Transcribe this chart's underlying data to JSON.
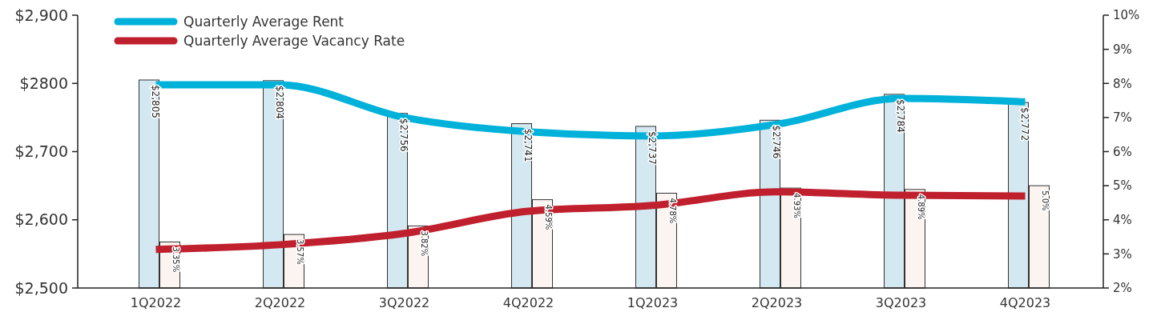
{
  "chart_data": {
    "type": "bar",
    "categories": [
      "1Q2022",
      "2Q2022",
      "3Q2022",
      "4Q2022",
      "1Q2023",
      "2Q2023",
      "3Q2023",
      "4Q2023"
    ],
    "series": [
      {
        "axis": "y",
        "color": "#d3e8f0",
        "values": [
          2805,
          2804,
          2756,
          2741,
          2737,
          2746,
          2784,
          2772
        ],
        "value_labels": [
          "$2,805",
          "$2,804",
          "$2,756",
          "$2,741",
          "$2,737",
          "$2,746",
          "$2,784",
          "$2,772"
        ]
      },
      {
        "axis": "y2",
        "color": "#fcf4f1",
        "values": [
          3.35,
          3.57,
          3.82,
          4.59,
          4.78,
          4.93,
          4.89,
          5.0
        ],
        "value_labels": [
          "3.35%",
          "3.57%",
          "3.82%",
          "4.59%",
          "4.78%",
          "4.93%",
          "4.89%",
          "5.0%"
        ]
      },
      {
        "type": "line",
        "axis": "y",
        "name": "Quarterly Average Rent",
        "color": "#00b2d9",
        "values": [
          2798,
          2798,
          2750,
          2729,
          2723,
          2740,
          2778,
          2773
        ]
      },
      {
        "type": "line",
        "axis": "y2",
        "name": "Quarterly Average Vacancy Rate",
        "color": "#c0202e",
        "values": [
          3.13,
          3.27,
          3.6,
          4.25,
          4.42,
          4.82,
          4.72,
          4.7
        ]
      }
    ],
    "ylim": [
      2500,
      2900
    ],
    "yticks": [
      {
        "value": 2500,
        "label": "$2,500"
      },
      {
        "value": 2600,
        "label": "$2,600"
      },
      {
        "value": 2700,
        "label": "$2,700"
      },
      {
        "value": 2800,
        "label": "$2800"
      },
      {
        "value": 2900,
        "label": "$2,900"
      }
    ],
    "y2lim": [
      2,
      10
    ],
    "y2ticks": [
      {
        "value": 2,
        "label": "2%"
      },
      {
        "value": 3,
        "label": "3%"
      },
      {
        "value": 4,
        "label": "4%"
      },
      {
        "value": 5,
        "label": "5%"
      },
      {
        "value": 6,
        "label": "6%"
      },
      {
        "value": 7,
        "label": "7%"
      },
      {
        "value": 8,
        "label": "8%"
      },
      {
        "value": 9,
        "label": "9%"
      },
      {
        "value": 10,
        "label": "10%"
      }
    ],
    "legend": "top left",
    "grid": false
  }
}
